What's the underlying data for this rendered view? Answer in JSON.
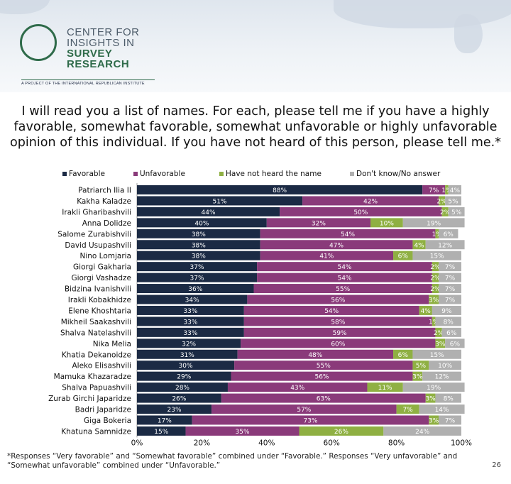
{
  "logo": {
    "line1": "CENTER FOR",
    "line2": "INSIGHTS IN",
    "line3": "SURVEY",
    "line4": "RESEARCH",
    "subtitle": "A PROJECT OF THE INTERNATIONAL REPUBLICAN INSTITUTE",
    "color": "#2f6b4a"
  },
  "title": "I will read you a list of names. For each, please tell me if you have a highly favorable, somewhat favorable, somewhat unfavorable or highly unfavorable opinion of this individual. If you have not heard of this person, please tell me.*",
  "footnote": "*Responses “Very favorable” and “Somewhat favorable” combined under “Favorable.” Responses “Very unfavorable” and “Somewhat unfavorable” combined under “Unfavorable.”",
  "page_number": "26",
  "chart_data": {
    "type": "bar",
    "orientation": "horizontal",
    "stacked": true,
    "xlim": [
      0,
      100
    ],
    "x_ticks": [
      "0%",
      "20%",
      "40%",
      "60%",
      "80%",
      "100%"
    ],
    "legend_position": "top",
    "categories": [
      "Patriarch Ilia II",
      "Kakha Kaladze",
      "Irakli Gharibashvili",
      "Anna Dolidze",
      "Salome Zurabishvili",
      "David Usupashvili",
      "Nino Lomjaria",
      "Giorgi Gakharia",
      "Giorgi Vashadze",
      "Bidzina Ivanishvili",
      "Irakli Kobakhidze",
      "Elene Khoshtaria",
      "Mikheil Saakashvili",
      "Shalva Natelashvili",
      "Nika Melia",
      "Khatia Dekanoidze",
      "Aleko Elisashvili",
      "Mamuka Khazaradze",
      "Shalva Papuashvili",
      "Zurab Girchi Japaridze",
      "Badri Japaridze",
      "Giga Bokeria",
      "Khatuna Samnidze"
    ],
    "series": [
      {
        "name": "Favorable",
        "color": "#1b2a44",
        "values": [
          88,
          51,
          44,
          40,
          38,
          38,
          38,
          37,
          37,
          36,
          34,
          33,
          33,
          33,
          32,
          31,
          30,
          29,
          28,
          26,
          23,
          17,
          15
        ]
      },
      {
        "name": "Unfavorable",
        "color": "#8a3a7a",
        "values": [
          7,
          42,
          50,
          32,
          54,
          47,
          41,
          54,
          54,
          55,
          56,
          54,
          58,
          59,
          60,
          48,
          55,
          56,
          43,
          63,
          57,
          73,
          35
        ]
      },
      {
        "name": "Have not heard the name",
        "color": "#8fb043",
        "values": [
          1,
          2,
          2,
          10,
          1,
          4,
          6,
          2,
          2,
          2,
          3,
          4,
          1,
          2,
          3,
          6,
          5,
          3,
          11,
          3,
          7,
          3,
          26
        ]
      },
      {
        "name": "Don't know/No answer",
        "color": "#b0b0b0",
        "values": [
          4,
          5,
          5,
          19,
          6,
          12,
          15,
          7,
          7,
          7,
          7,
          9,
          8,
          6,
          6,
          15,
          10,
          12,
          19,
          8,
          14,
          7,
          24
        ]
      }
    ]
  }
}
